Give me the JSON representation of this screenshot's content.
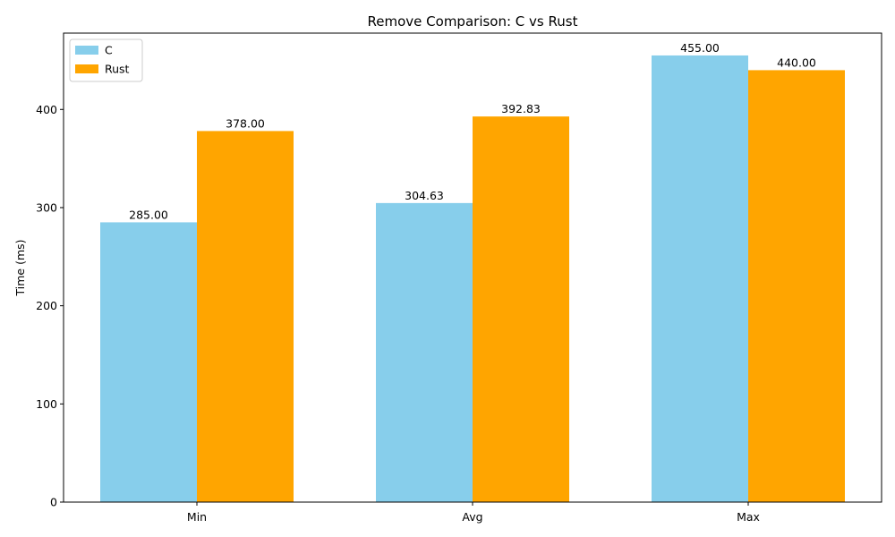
{
  "chart_data": {
    "type": "bar",
    "title": "Remove Comparison: C vs Rust",
    "xlabel": "",
    "ylabel": "Time (ms)",
    "categories": [
      "Min",
      "Avg",
      "Max"
    ],
    "series": [
      {
        "name": "C",
        "values": [
          285.0,
          304.63,
          455.0
        ],
        "color": "#87CEEB"
      },
      {
        "name": "Rust",
        "values": [
          378.0,
          392.83,
          440.0
        ],
        "color": "#FFA500"
      }
    ],
    "data_labels": [
      [
        "285.00",
        "304.63",
        "455.00"
      ],
      [
        "378.00",
        "392.83",
        "440.00"
      ]
    ],
    "ylim": [
      0,
      477.75
    ],
    "yticks": [
      0,
      100,
      200,
      300,
      400
    ],
    "grid": false,
    "legend": "top-left"
  }
}
